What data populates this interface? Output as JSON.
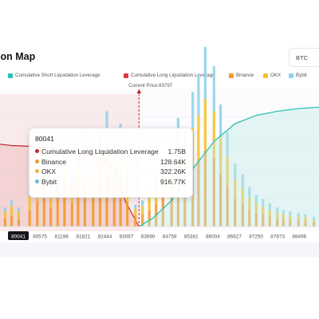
{
  "header": {
    "title": "ion Map",
    "symbol": "BTC"
  },
  "legend": [
    {
      "label": "Cumulative Short Liquidation Leverage",
      "color": "#29c2b0"
    },
    {
      "label": "Cumulative Long Liquidation Leverage",
      "color": "#d93a3a"
    },
    {
      "label": "Binance",
      "color": "#f29a2e"
    },
    {
      "label": "OKX",
      "color": "#f2c230"
    },
    {
      "label": "Bybit",
      "color": "#8fd4e8"
    }
  ],
  "current_price_label": "Current Price:83797",
  "tooltip": {
    "price": "80041",
    "rows": [
      {
        "label": "Cumulative Long Liquidation Leverage",
        "value": "1.75B",
        "color": "#c0282d"
      },
      {
        "label": "Binance",
        "value": "128.64K",
        "color": "#f29a2e"
      },
      {
        "label": "OKX",
        "value": "322.26K",
        "color": "#e8b83a"
      },
      {
        "label": "Bybit",
        "value": "916.77K",
        "color": "#6cb7d4"
      }
    ]
  },
  "chart_data": {
    "type": "bar",
    "x_tick_labels": [
      "80041",
      "80575",
      "81198",
      "81821",
      "82444",
      "83067",
      "83690",
      "84758",
      "85381",
      "86004",
      "86627",
      "87250",
      "87873",
      "88496"
    ],
    "highlighted_tick": "80041",
    "current_price": 83797,
    "xlim": [
      79700,
      89100
    ],
    "series": [
      {
        "name": "Cumulative Short Liquidation Leverage",
        "type": "area",
        "x": [
          83797,
          84200,
          84758,
          85381,
          86004,
          86627,
          87250,
          87873,
          88496,
          89100
        ],
        "values": [
          0,
          0.06,
          0.19,
          0.42,
          0.62,
          0.75,
          0.81,
          0.84,
          0.86,
          0.87
        ]
      },
      {
        "name": "Cumulative Long Liquidation Leverage",
        "type": "area",
        "x": [
          79700,
          80041,
          80575,
          81198,
          81821,
          82444,
          83067,
          83400,
          83797
        ],
        "values": [
          0.6,
          0.59,
          0.585,
          0.57,
          0.55,
          0.52,
          0.43,
          0.18,
          0
        ]
      },
      {
        "name": "Binance",
        "type": "bar",
        "x": [
          79850,
          80041,
          80250,
          80575,
          80800,
          81000,
          81198,
          81400,
          81600,
          81821,
          82000,
          82200,
          82444,
          82650,
          82850,
          83067,
          83250,
          83450,
          83690,
          83900,
          84100,
          84300,
          84500,
          84758,
          84950,
          85150,
          85381,
          85550,
          85750,
          86004,
          86200,
          86400,
          86627,
          86850,
          87050,
          87250,
          87450,
          87650,
          87873,
          88050,
          88250,
          88496,
          88700,
          88950
        ],
        "values": [
          0.06,
          0.08,
          0.05,
          0.12,
          0.18,
          0.21,
          0.14,
          0.24,
          0.29,
          0.17,
          0.25,
          0.31,
          0.22,
          0.3,
          0.38,
          0.26,
          0.33,
          0.18,
          0.08,
          0.09,
          0.12,
          0.16,
          0.22,
          0.27,
          0.35,
          0.3,
          0.42,
          0.48,
          0.55,
          0.5,
          0.38,
          0.3,
          0.2,
          0.16,
          0.12,
          0.1,
          0.09,
          0.07,
          0.06,
          0.05,
          0.05,
          0.04,
          0.04,
          0.03
        ]
      },
      {
        "name": "OKX",
        "type": "bar",
        "x": [
          79850,
          80041,
          80250,
          80575,
          80800,
          81000,
          81198,
          81400,
          81600,
          81821,
          82000,
          82200,
          82444,
          82650,
          82850,
          83067,
          83250,
          83450,
          83690,
          83900,
          84100,
          84300,
          84500,
          84758,
          84950,
          85150,
          85381,
          85550,
          85750,
          86004,
          86200,
          86400,
          86627,
          86850,
          87050,
          87250,
          87450,
          87650,
          87873,
          88050,
          88250,
          88496,
          88700,
          88950
        ],
        "values": [
          0.05,
          0.07,
          0.06,
          0.1,
          0.12,
          0.16,
          0.11,
          0.17,
          0.2,
          0.13,
          0.18,
          0.22,
          0.16,
          0.22,
          0.26,
          0.2,
          0.24,
          0.12,
          0.05,
          0.06,
          0.09,
          0.11,
          0.16,
          0.2,
          0.24,
          0.21,
          0.3,
          0.33,
          0.38,
          0.34,
          0.27,
          0.21,
          0.14,
          0.12,
          0.09,
          0.07,
          0.06,
          0.05,
          0.04,
          0.04,
          0.03,
          0.03,
          0.03,
          0.02
        ]
      },
      {
        "name": "Bybit",
        "type": "bar",
        "x": [
          79850,
          80041,
          80250,
          80575,
          80800,
          81000,
          81198,
          81400,
          81600,
          81821,
          82000,
          82200,
          82444,
          82650,
          82850,
          83067,
          83250,
          83450,
          83690,
          83900,
          84100,
          84300,
          84500,
          84758,
          84950,
          85150,
          85381,
          85550,
          85750,
          86004,
          86200,
          86400,
          86627,
          86850,
          87050,
          87250,
          87450,
          87650,
          87873,
          88050,
          88250,
          88496,
          88700,
          88950
        ],
        "values": [
          0.03,
          0.04,
          0.03,
          0.06,
          0.08,
          0.1,
          0.07,
          0.11,
          0.14,
          0.09,
          0.12,
          0.16,
          0.11,
          0.16,
          0.2,
          0.14,
          0.18,
          0.09,
          0.03,
          0.04,
          0.06,
          0.08,
          0.12,
          0.16,
          0.2,
          0.18,
          0.26,
          0.3,
          0.38,
          0.33,
          0.24,
          0.18,
          0.12,
          0.1,
          0.08,
          0.06,
          0.05,
          0.05,
          0.04,
          0.03,
          0.03,
          0.03,
          0.02,
          0.02
        ]
      }
    ]
  }
}
